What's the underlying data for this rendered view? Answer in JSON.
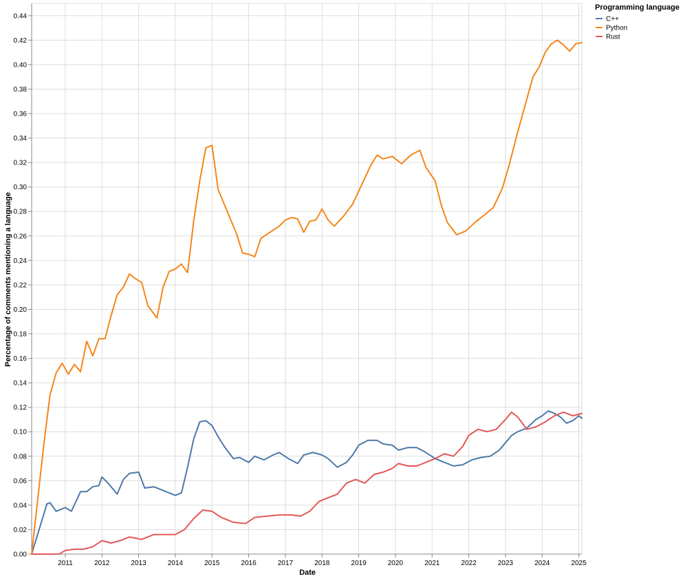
{
  "chart_data": {
    "type": "line",
    "title": "",
    "xlabel": "Date",
    "ylabel": "Percentage of comments mentioning a language",
    "ylim": [
      0,
      0.45
    ],
    "xlim": [
      "2010-02-01",
      "2025-02-01"
    ],
    "x_ticks": [
      "2011",
      "2012",
      "2013",
      "2014",
      "2015",
      "2016",
      "2017",
      "2018",
      "2019",
      "2020",
      "2021",
      "2022",
      "2023",
      "2024",
      "2025"
    ],
    "y_ticks": [
      "0.00",
      "0.02",
      "0.04",
      "0.06",
      "0.08",
      "0.10",
      "0.12",
      "0.14",
      "0.16",
      "0.18",
      "0.20",
      "0.22",
      "0.24",
      "0.26",
      "0.28",
      "0.30",
      "0.32",
      "0.34",
      "0.36",
      "0.38",
      "0.40",
      "0.42",
      "0.44"
    ],
    "grid": true,
    "legend": {
      "title": "Programming language",
      "position": "top-right"
    },
    "series": [
      {
        "name": "C++",
        "color": "#4c78a8",
        "points": [
          [
            "2010-02",
            0.0
          ],
          [
            "2010-07",
            0.041
          ],
          [
            "2010-08",
            0.042
          ],
          [
            "2010-10",
            0.035
          ],
          [
            "2011-01",
            0.038
          ],
          [
            "2011-03",
            0.035
          ],
          [
            "2011-06",
            0.051
          ],
          [
            "2011-08",
            0.051
          ],
          [
            "2011-10",
            0.055
          ],
          [
            "2011-12",
            0.056
          ],
          [
            "2012-01",
            0.063
          ],
          [
            "2012-03",
            0.058
          ],
          [
            "2012-06",
            0.049
          ],
          [
            "2012-08",
            0.061
          ],
          [
            "2012-10",
            0.066
          ],
          [
            "2013-01",
            0.067
          ],
          [
            "2013-03",
            0.054
          ],
          [
            "2013-06",
            0.055
          ],
          [
            "2013-09",
            0.052
          ],
          [
            "2014-01",
            0.048
          ],
          [
            "2014-03",
            0.05
          ],
          [
            "2014-05",
            0.071
          ],
          [
            "2014-07",
            0.094
          ],
          [
            "2014-09",
            0.108
          ],
          [
            "2014-11",
            0.109
          ],
          [
            "2015-01",
            0.105
          ],
          [
            "2015-03",
            0.096
          ],
          [
            "2015-05",
            0.088
          ],
          [
            "2015-08",
            0.078
          ],
          [
            "2015-10",
            0.079
          ],
          [
            "2016-01",
            0.075
          ],
          [
            "2016-03",
            0.08
          ],
          [
            "2016-06",
            0.077
          ],
          [
            "2016-09",
            0.081
          ],
          [
            "2016-11",
            0.083
          ],
          [
            "2017-02",
            0.078
          ],
          [
            "2017-05",
            0.074
          ],
          [
            "2017-07",
            0.081
          ],
          [
            "2017-10",
            0.083
          ],
          [
            "2018-01",
            0.081
          ],
          [
            "2018-03",
            0.078
          ],
          [
            "2018-06",
            0.071
          ],
          [
            "2018-09",
            0.075
          ],
          [
            "2018-11",
            0.081
          ],
          [
            "2019-01",
            0.089
          ],
          [
            "2019-04",
            0.093
          ],
          [
            "2019-07",
            0.093
          ],
          [
            "2019-09",
            0.09
          ],
          [
            "2019-12",
            0.089
          ],
          [
            "2020-02",
            0.085
          ],
          [
            "2020-05",
            0.087
          ],
          [
            "2020-08",
            0.087
          ],
          [
            "2020-11",
            0.083
          ],
          [
            "2021-02",
            0.078
          ],
          [
            "2021-05",
            0.075
          ],
          [
            "2021-08",
            0.072
          ],
          [
            "2021-11",
            0.073
          ],
          [
            "2022-02",
            0.077
          ],
          [
            "2022-05",
            0.079
          ],
          [
            "2022-08",
            0.08
          ],
          [
            "2022-11",
            0.085
          ],
          [
            "2023-01",
            0.091
          ],
          [
            "2023-03",
            0.097
          ],
          [
            "2023-05",
            0.1
          ],
          [
            "2023-08",
            0.103
          ],
          [
            "2023-11",
            0.11
          ],
          [
            "2024-01",
            0.113
          ],
          [
            "2024-03",
            0.117
          ],
          [
            "2024-05",
            0.115
          ],
          [
            "2024-07",
            0.112
          ],
          [
            "2024-09",
            0.107
          ],
          [
            "2024-11",
            0.109
          ],
          [
            "2025-01",
            0.113
          ],
          [
            "2025-02",
            0.111
          ]
        ]
      },
      {
        "name": "Python",
        "color": "#f58518",
        "points": [
          [
            "2010-02",
            0.0
          ],
          [
            "2010-06",
            0.09
          ],
          [
            "2010-08",
            0.13
          ],
          [
            "2010-10",
            0.148
          ],
          [
            "2010-12",
            0.156
          ],
          [
            "2011-02",
            0.147
          ],
          [
            "2011-04",
            0.155
          ],
          [
            "2011-06",
            0.149
          ],
          [
            "2011-08",
            0.174
          ],
          [
            "2011-10",
            0.162
          ],
          [
            "2011-12",
            0.176
          ],
          [
            "2012-02",
            0.176
          ],
          [
            "2012-04",
            0.195
          ],
          [
            "2012-06",
            0.212
          ],
          [
            "2012-08",
            0.218
          ],
          [
            "2012-10",
            0.229
          ],
          [
            "2012-12",
            0.225
          ],
          [
            "2013-02",
            0.222
          ],
          [
            "2013-04",
            0.203
          ],
          [
            "2013-07",
            0.193
          ],
          [
            "2013-09",
            0.218
          ],
          [
            "2013-11",
            0.231
          ],
          [
            "2014-01",
            0.233
          ],
          [
            "2014-03",
            0.237
          ],
          [
            "2014-05",
            0.23
          ],
          [
            "2014-07",
            0.272
          ],
          [
            "2014-09",
            0.305
          ],
          [
            "2014-11",
            0.332
          ],
          [
            "2015-01",
            0.334
          ],
          [
            "2015-03",
            0.298
          ],
          [
            "2015-06",
            0.28
          ],
          [
            "2015-09",
            0.262
          ],
          [
            "2015-11",
            0.246
          ],
          [
            "2016-01",
            0.245
          ],
          [
            "2016-03",
            0.243
          ],
          [
            "2016-05",
            0.258
          ],
          [
            "2016-08",
            0.263
          ],
          [
            "2016-11",
            0.268
          ],
          [
            "2017-01",
            0.273
          ],
          [
            "2017-03",
            0.275
          ],
          [
            "2017-05",
            0.274
          ],
          [
            "2017-07",
            0.263
          ],
          [
            "2017-09",
            0.272
          ],
          [
            "2017-11",
            0.273
          ],
          [
            "2018-01",
            0.282
          ],
          [
            "2018-03",
            0.273
          ],
          [
            "2018-05",
            0.268
          ],
          [
            "2018-08",
            0.276
          ],
          [
            "2018-11",
            0.286
          ],
          [
            "2019-02",
            0.302
          ],
          [
            "2019-05",
            0.318
          ],
          [
            "2019-07",
            0.326
          ],
          [
            "2019-09",
            0.323
          ],
          [
            "2019-12",
            0.325
          ],
          [
            "2020-03",
            0.319
          ],
          [
            "2020-06",
            0.326
          ],
          [
            "2020-09",
            0.33
          ],
          [
            "2020-11",
            0.316
          ],
          [
            "2021-02",
            0.305
          ],
          [
            "2021-04",
            0.285
          ],
          [
            "2021-06",
            0.271
          ],
          [
            "2021-09",
            0.261
          ],
          [
            "2021-12",
            0.264
          ],
          [
            "2022-03",
            0.271
          ],
          [
            "2022-06",
            0.277
          ],
          [
            "2022-09",
            0.283
          ],
          [
            "2022-12",
            0.299
          ],
          [
            "2023-02",
            0.316
          ],
          [
            "2023-05",
            0.345
          ],
          [
            "2023-07",
            0.363
          ],
          [
            "2023-10",
            0.39
          ],
          [
            "2023-12",
            0.398
          ],
          [
            "2024-02",
            0.41
          ],
          [
            "2024-04",
            0.417
          ],
          [
            "2024-06",
            0.42
          ],
          [
            "2024-08",
            0.416
          ],
          [
            "2024-10",
            0.411
          ],
          [
            "2024-12",
            0.417
          ],
          [
            "2025-02",
            0.418
          ]
        ]
      },
      {
        "name": "Rust",
        "color": "#e45756",
        "points": [
          [
            "2010-02",
            0.0
          ],
          [
            "2010-11",
            0.0
          ],
          [
            "2011-01",
            0.003
          ],
          [
            "2011-04",
            0.004
          ],
          [
            "2011-07",
            0.004
          ],
          [
            "2011-10",
            0.006
          ],
          [
            "2012-01",
            0.011
          ],
          [
            "2012-04",
            0.009
          ],
          [
            "2012-07",
            0.011
          ],
          [
            "2012-10",
            0.014
          ],
          [
            "2013-02",
            0.012
          ],
          [
            "2013-06",
            0.016
          ],
          [
            "2013-10",
            0.016
          ],
          [
            "2014-01",
            0.016
          ],
          [
            "2014-04",
            0.02
          ],
          [
            "2014-07",
            0.029
          ],
          [
            "2014-10",
            0.036
          ],
          [
            "2015-01",
            0.035
          ],
          [
            "2015-04",
            0.03
          ],
          [
            "2015-08",
            0.026
          ],
          [
            "2015-12",
            0.025
          ],
          [
            "2016-03",
            0.03
          ],
          [
            "2016-07",
            0.031
          ],
          [
            "2016-11",
            0.032
          ],
          [
            "2017-03",
            0.032
          ],
          [
            "2017-06",
            0.031
          ],
          [
            "2017-09",
            0.035
          ],
          [
            "2017-12",
            0.043
          ],
          [
            "2018-03",
            0.046
          ],
          [
            "2018-06",
            0.049
          ],
          [
            "2018-09",
            0.058
          ],
          [
            "2018-12",
            0.061
          ],
          [
            "2019-03",
            0.058
          ],
          [
            "2019-06",
            0.065
          ],
          [
            "2019-09",
            0.067
          ],
          [
            "2019-12",
            0.07
          ],
          [
            "2020-02",
            0.074
          ],
          [
            "2020-05",
            0.072
          ],
          [
            "2020-08",
            0.072
          ],
          [
            "2020-11",
            0.075
          ],
          [
            "2021-02",
            0.078
          ],
          [
            "2021-05",
            0.082
          ],
          [
            "2021-08",
            0.08
          ],
          [
            "2021-11",
            0.088
          ],
          [
            "2022-01",
            0.097
          ],
          [
            "2022-04",
            0.102
          ],
          [
            "2022-07",
            0.1
          ],
          [
            "2022-10",
            0.102
          ],
          [
            "2023-01",
            0.11
          ],
          [
            "2023-03",
            0.116
          ],
          [
            "2023-05",
            0.112
          ],
          [
            "2023-08",
            0.102
          ],
          [
            "2023-11",
            0.104
          ],
          [
            "2024-02",
            0.108
          ],
          [
            "2024-05",
            0.113
          ],
          [
            "2024-08",
            0.116
          ],
          [
            "2024-11",
            0.113
          ],
          [
            "2025-02",
            0.115
          ]
        ]
      }
    ]
  }
}
